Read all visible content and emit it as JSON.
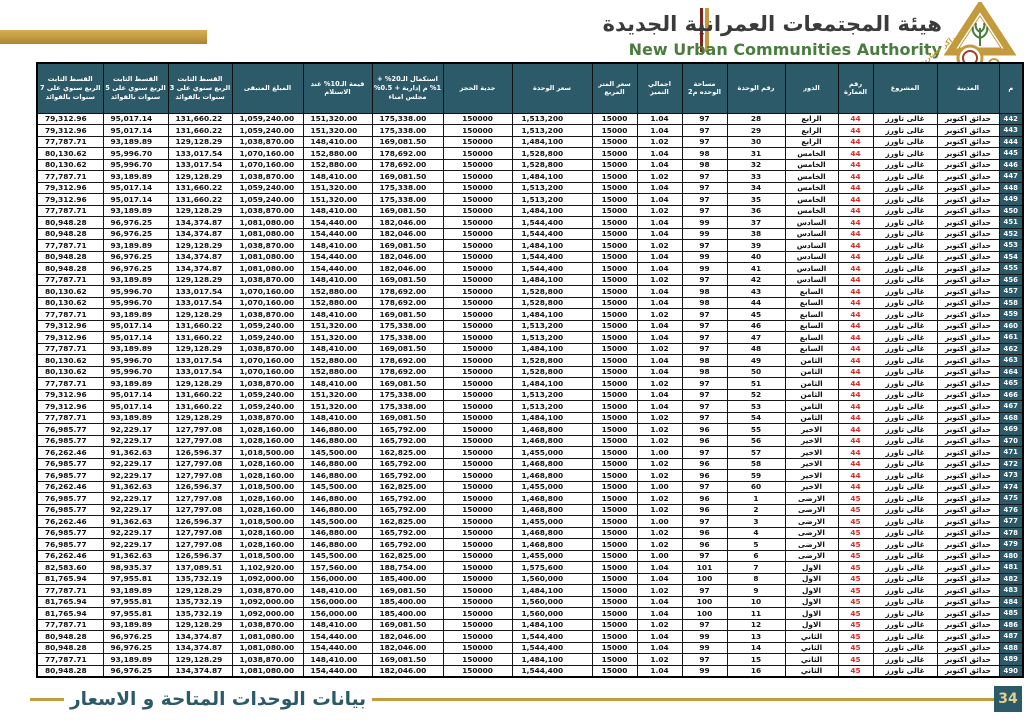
{
  "header": {
    "title_ar": "هيئة المجتمعات العمرانية الجديدة",
    "title_en": "New Urban Communities Authority",
    "logo_tagline": "مراكز حضارية جديدة"
  },
  "footer": {
    "caption": "بيانات الوحدات المتاحة و الاسعار",
    "page_number": "34"
  },
  "colors": {
    "header_bg": "#2d5a68",
    "accent_gold": "#c49b3c",
    "building_red": "#d92b2b",
    "english_green": "#4a7c3f",
    "strip_red": "#7d2320"
  },
  "table": {
    "columns": [
      {
        "key": "serial",
        "label": "م"
      },
      {
        "key": "city",
        "label": "المدينة"
      },
      {
        "key": "project",
        "label": "المشروع"
      },
      {
        "key": "building",
        "label": "رقم العمارة"
      },
      {
        "key": "floor",
        "label": "الدور"
      },
      {
        "key": "unit",
        "label": "رقم الوحدة"
      },
      {
        "key": "area",
        "label": "مساحة الوحده م2"
      },
      {
        "key": "premium",
        "label": "اجمالي التميز"
      },
      {
        "key": "meter_price",
        "label": "سعر المتر المربع"
      },
      {
        "key": "unit_price",
        "label": "سعر الوحدة"
      },
      {
        "key": "deposit",
        "label": "جدية الحجز"
      },
      {
        "key": "completion_20",
        "label": "استكمال الـ20% + 1% م إدارية + 0.5% مجلس امناء"
      },
      {
        "key": "value_10",
        "label": "قيمة الـ10% عند الاستلام"
      },
      {
        "key": "remaining",
        "label": "المبلغ المتبقى"
      },
      {
        "key": "installment_3y",
        "label": "القسط الثابت الربع سنوي على 3 سنوات بالفوائد"
      },
      {
        "key": "installment_5y",
        "label": "القسط الثابت الربع سنوي على 5 سنوات بالفوائد"
      },
      {
        "key": "installment_7y",
        "label": "القسط الثابت الربع سنوي على 7 سنوات بالفوائد"
      }
    ],
    "rows": [
      [
        "442",
        "حدائق اكتوبر",
        "غالى تاورز",
        "44",
        "الرابع",
        "28",
        "97",
        "1.04",
        "15000",
        "1,513,200",
        "150000",
        "175,338.00",
        "151,320.00",
        "1,059,240.00",
        "131,660.22",
        "95,017.14",
        "79,312.96"
      ],
      [
        "443",
        "حدائق اكتوبر",
        "غالى تاورز",
        "44",
        "الرابع",
        "29",
        "97",
        "1.04",
        "15000",
        "1,513,200",
        "150000",
        "175,338.00",
        "151,320.00",
        "1,059,240.00",
        "131,660.22",
        "95,017.14",
        "79,312.96"
      ],
      [
        "444",
        "حدائق اكتوبر",
        "غالى تاورز",
        "44",
        "الرابع",
        "30",
        "97",
        "1.02",
        "15000",
        "1,484,100",
        "150000",
        "169,081.50",
        "148,410.00",
        "1,038,870.00",
        "129,128.29",
        "93,189.89",
        "77,787.71"
      ],
      [
        "445",
        "حدائق اكتوبر",
        "غالى تاورز",
        "44",
        "الخامس",
        "31",
        "98",
        "1.04",
        "15000",
        "1,528,800",
        "150000",
        "178,692.00",
        "152,880.00",
        "1,070,160.00",
        "133,017.54",
        "95,996.70",
        "80,130.62"
      ],
      [
        "446",
        "حدائق اكتوبر",
        "غالى تاورز",
        "44",
        "الخامس",
        "32",
        "98",
        "1.04",
        "15000",
        "1,528,800",
        "150000",
        "178,692.00",
        "152,880.00",
        "1,070,160.00",
        "133,017.54",
        "95,996.70",
        "80,130.62"
      ],
      [
        "447",
        "حدائق اكتوبر",
        "غالى تاورز",
        "44",
        "الخامس",
        "33",
        "97",
        "1.02",
        "15000",
        "1,484,100",
        "150000",
        "169,081.50",
        "148,410.00",
        "1,038,870.00",
        "129,128.29",
        "93,189.89",
        "77,787.71"
      ],
      [
        "448",
        "حدائق اكتوبر",
        "غالى تاورز",
        "44",
        "الخامس",
        "34",
        "97",
        "1.04",
        "15000",
        "1,513,200",
        "150000",
        "175,338.00",
        "151,320.00",
        "1,059,240.00",
        "131,660.22",
        "95,017.14",
        "79,312.96"
      ],
      [
        "449",
        "حدائق اكتوبر",
        "غالى تاورز",
        "44",
        "الخامس",
        "35",
        "97",
        "1.04",
        "15000",
        "1,513,200",
        "150000",
        "175,338.00",
        "151,320.00",
        "1,059,240.00",
        "131,660.22",
        "95,017.14",
        "79,312.96"
      ],
      [
        "450",
        "حدائق اكتوبر",
        "غالى تاورز",
        "44",
        "الخامس",
        "36",
        "97",
        "1.02",
        "15000",
        "1,484,100",
        "150000",
        "169,081.50",
        "148,410.00",
        "1,038,870.00",
        "129,128.29",
        "93,189.89",
        "77,787.71"
      ],
      [
        "451",
        "حدائق اكتوبر",
        "غالى تاورز",
        "44",
        "السادس",
        "37",
        "99",
        "1.04",
        "15000",
        "1,544,400",
        "150000",
        "182,046.00",
        "154,440.00",
        "1,081,080.00",
        "134,374.87",
        "96,976.25",
        "80,948.28"
      ],
      [
        "452",
        "حدائق اكتوبر",
        "غالى تاورز",
        "44",
        "السادس",
        "38",
        "99",
        "1.04",
        "15000",
        "1,544,400",
        "150000",
        "182,046.00",
        "154,440.00",
        "1,081,080.00",
        "134,374.87",
        "96,976.25",
        "80,948.28"
      ],
      [
        "453",
        "حدائق اكتوبر",
        "غالى تاورز",
        "44",
        "السادس",
        "39",
        "97",
        "1.02",
        "15000",
        "1,484,100",
        "150000",
        "169,081.50",
        "148,410.00",
        "1,038,870.00",
        "129,128.29",
        "93,189.89",
        "77,787.71"
      ],
      [
        "454",
        "حدائق اكتوبر",
        "غالى تاورز",
        "44",
        "السادس",
        "40",
        "99",
        "1.04",
        "15000",
        "1,544,400",
        "150000",
        "182,046.00",
        "154,440.00",
        "1,081,080.00",
        "134,374.87",
        "96,976.25",
        "80,948.28"
      ],
      [
        "455",
        "حدائق اكتوبر",
        "غالى تاورز",
        "44",
        "السادس",
        "41",
        "99",
        "1.04",
        "15000",
        "1,544,400",
        "150000",
        "182,046.00",
        "154,440.00",
        "1,081,080.00",
        "134,374.87",
        "96,976.25",
        "80,948.28"
      ],
      [
        "456",
        "حدائق اكتوبر",
        "غالى تاورز",
        "44",
        "السادس",
        "42",
        "97",
        "1.02",
        "15000",
        "1,484,100",
        "150000",
        "169,081.50",
        "148,410.00",
        "1,038,870.00",
        "129,128.29",
        "93,189.89",
        "77,787.71"
      ],
      [
        "457",
        "حدائق اكتوبر",
        "غالى تاورز",
        "44",
        "السابع",
        "43",
        "98",
        "1.04",
        "15000",
        "1,528,800",
        "150000",
        "178,692.00",
        "152,880.00",
        "1,070,160.00",
        "133,017.54",
        "95,996.70",
        "80,130.62"
      ],
      [
        "458",
        "حدائق اكتوبر",
        "غالى تاورز",
        "44",
        "السابع",
        "44",
        "98",
        "1.04",
        "15000",
        "1,528,800",
        "150000",
        "178,692.00",
        "152,880.00",
        "1,070,160.00",
        "133,017.54",
        "95,996.70",
        "80,130.62"
      ],
      [
        "459",
        "حدائق اكتوبر",
        "غالى تاورز",
        "44",
        "السابع",
        "45",
        "97",
        "1.02",
        "15000",
        "1,484,100",
        "150000",
        "169,081.50",
        "148,410.00",
        "1,038,870.00",
        "129,128.29",
        "93,189.89",
        "77,787.71"
      ],
      [
        "460",
        "حدائق اكتوبر",
        "غالى تاورز",
        "44",
        "السابع",
        "46",
        "97",
        "1.04",
        "15000",
        "1,513,200",
        "150000",
        "175,338.00",
        "151,320.00",
        "1,059,240.00",
        "131,660.22",
        "95,017.14",
        "79,312.96"
      ],
      [
        "461",
        "حدائق اكتوبر",
        "غالى تاورز",
        "44",
        "السابع",
        "47",
        "97",
        "1.04",
        "15000",
        "1,513,200",
        "150000",
        "175,338.00",
        "151,320.00",
        "1,059,240.00",
        "131,660.22",
        "95,017.14",
        "79,312.96"
      ],
      [
        "462",
        "حدائق اكتوبر",
        "غالى تاورز",
        "44",
        "السابع",
        "48",
        "97",
        "1.02",
        "15000",
        "1,484,100",
        "150000",
        "169,081.50",
        "148,410.00",
        "1,038,870.00",
        "129,128.29",
        "93,189.89",
        "77,787.71"
      ],
      [
        "463",
        "حدائق اكتوبر",
        "غالى تاورز",
        "44",
        "الثامن",
        "49",
        "98",
        "1.04",
        "15000",
        "1,528,800",
        "150000",
        "178,692.00",
        "152,880.00",
        "1,070,160.00",
        "133,017.54",
        "95,996.70",
        "80,130.62"
      ],
      [
        "464",
        "حدائق اكتوبر",
        "غالى تاورز",
        "44",
        "الثامن",
        "50",
        "98",
        "1.04",
        "15000",
        "1,528,800",
        "150000",
        "178,692.00",
        "152,880.00",
        "1,070,160.00",
        "133,017.54",
        "95,996.70",
        "80,130.62"
      ],
      [
        "465",
        "حدائق اكتوبر",
        "غالى تاورز",
        "44",
        "الثامن",
        "51",
        "97",
        "1.02",
        "15000",
        "1,484,100",
        "150000",
        "169,081.50",
        "148,410.00",
        "1,038,870.00",
        "129,128.29",
        "93,189.89",
        "77,787.71"
      ],
      [
        "466",
        "حدائق اكتوبر",
        "غالى تاورز",
        "44",
        "الثامن",
        "52",
        "97",
        "1.04",
        "15000",
        "1,513,200",
        "150000",
        "175,338.00",
        "151,320.00",
        "1,059,240.00",
        "131,660.22",
        "95,017.14",
        "79,312.96"
      ],
      [
        "467",
        "حدائق اكتوبر",
        "غالى تاورز",
        "44",
        "الثامن",
        "53",
        "97",
        "1.04",
        "15000",
        "1,513,200",
        "150000",
        "175,338.00",
        "151,320.00",
        "1,059,240.00",
        "131,660.22",
        "95,017.14",
        "79,312.96"
      ],
      [
        "468",
        "حدائق اكتوبر",
        "غالى تاورز",
        "44",
        "الثامن",
        "54",
        "97",
        "1.02",
        "15000",
        "1,484,100",
        "150000",
        "169,081.50",
        "148,410.00",
        "1,038,870.00",
        "129,128.29",
        "93,189.89",
        "77,787.71"
      ],
      [
        "469",
        "حدائق اكتوبر",
        "غالى تاورز",
        "44",
        "الاخير",
        "55",
        "96",
        "1.02",
        "15000",
        "1,468,800",
        "150000",
        "165,792.00",
        "146,880.00",
        "1,028,160.00",
        "127,797.08",
        "92,229.17",
        "76,985.77"
      ],
      [
        "470",
        "حدائق اكتوبر",
        "غالى تاورز",
        "44",
        "الاخير",
        "56",
        "96",
        "1.02",
        "15000",
        "1,468,800",
        "150000",
        "165,792.00",
        "146,880.00",
        "1,028,160.00",
        "127,797.08",
        "92,229.17",
        "76,985.77"
      ],
      [
        "471",
        "حدائق اكتوبر",
        "غالى تاورز",
        "44",
        "الاخير",
        "57",
        "97",
        "1.00",
        "15000",
        "1,455,000",
        "150000",
        "162,825.00",
        "145,500.00",
        "1,018,500.00",
        "126,596.37",
        "91,362.63",
        "76,262.46"
      ],
      [
        "472",
        "حدائق اكتوبر",
        "غالى تاورز",
        "44",
        "الاخير",
        "58",
        "96",
        "1.02",
        "15000",
        "1,468,800",
        "150000",
        "165,792.00",
        "146,880.00",
        "1,028,160.00",
        "127,797.08",
        "92,229.17",
        "76,985.77"
      ],
      [
        "473",
        "حدائق اكتوبر",
        "غالى تاورز",
        "44",
        "الاخير",
        "59",
        "96",
        "1.02",
        "15000",
        "1,468,800",
        "150000",
        "165,792.00",
        "146,880.00",
        "1,028,160.00",
        "127,797.08",
        "92,229.17",
        "76,985.77"
      ],
      [
        "474",
        "حدائق اكتوبر",
        "غالى تاورز",
        "44",
        "الاخير",
        "60",
        "97",
        "1.00",
        "15000",
        "1,455,000",
        "150000",
        "162,825.00",
        "145,500.00",
        "1,018,500.00",
        "126,596.37",
        "91,362.63",
        "76,262.46"
      ],
      [
        "475",
        "حدائق اكتوبر",
        "غالى تاورز",
        "45",
        "الارضى",
        "1",
        "96",
        "1.02",
        "15000",
        "1,468,800",
        "150000",
        "165,792.00",
        "146,880.00",
        "1,028,160.00",
        "127,797.08",
        "92,229.17",
        "76,985.77"
      ],
      [
        "476",
        "حدائق اكتوبر",
        "غالى تاورز",
        "45",
        "الارضى",
        "2",
        "96",
        "1.02",
        "15000",
        "1,468,800",
        "150000",
        "165,792.00",
        "146,880.00",
        "1,028,160.00",
        "127,797.08",
        "92,229.17",
        "76,985.77"
      ],
      [
        "477",
        "حدائق اكتوبر",
        "غالى تاورز",
        "45",
        "الارضى",
        "3",
        "97",
        "1.00",
        "15000",
        "1,455,000",
        "150000",
        "162,825.00",
        "145,500.00",
        "1,018,500.00",
        "126,596.37",
        "91,362.63",
        "76,262.46"
      ],
      [
        "478",
        "حدائق اكتوبر",
        "غالى تاورز",
        "45",
        "الارضى",
        "4",
        "96",
        "1.02",
        "15000",
        "1,468,800",
        "150000",
        "165,792.00",
        "146,880.00",
        "1,028,160.00",
        "127,797.08",
        "92,229.17",
        "76,985.77"
      ],
      [
        "479",
        "حدائق اكتوبر",
        "غالى تاورز",
        "45",
        "الارضى",
        "5",
        "96",
        "1.02",
        "15000",
        "1,468,800",
        "150000",
        "165,792.00",
        "146,880.00",
        "1,028,160.00",
        "127,797.08",
        "92,229.17",
        "76,985.77"
      ],
      [
        "480",
        "حدائق اكتوبر",
        "غالى تاورز",
        "45",
        "الارضى",
        "6",
        "97",
        "1.00",
        "15000",
        "1,455,000",
        "150000",
        "162,825.00",
        "145,500.00",
        "1,018,500.00",
        "126,596.37",
        "91,362.63",
        "76,262.46"
      ],
      [
        "481",
        "حدائق اكتوبر",
        "غالى تاورز",
        "45",
        "الاول",
        "7",
        "101",
        "1.04",
        "15000",
        "1,575,600",
        "150000",
        "188,754.00",
        "157,560.00",
        "1,102,920.00",
        "137,089.51",
        "98,935.37",
        "82,583.60"
      ],
      [
        "482",
        "حدائق اكتوبر",
        "غالى تاورز",
        "45",
        "الاول",
        "8",
        "100",
        "1.04",
        "15000",
        "1,560,000",
        "150000",
        "185,400.00",
        "156,000.00",
        "1,092,000.00",
        "135,732.19",
        "97,955.81",
        "81,765.94"
      ],
      [
        "483",
        "حدائق اكتوبر",
        "غالى تاورز",
        "45",
        "الاول",
        "9",
        "97",
        "1.02",
        "15000",
        "1,484,100",
        "150000",
        "169,081.50",
        "148,410.00",
        "1,038,870.00",
        "129,128.29",
        "93,189.89",
        "77,787.71"
      ],
      [
        "484",
        "حدائق اكتوبر",
        "غالى تاورز",
        "45",
        "الاول",
        "10",
        "100",
        "1.04",
        "15000",
        "1,560,000",
        "150000",
        "185,400.00",
        "156,000.00",
        "1,092,000.00",
        "135,732.19",
        "97,955.81",
        "81,765.94"
      ],
      [
        "485",
        "حدائق اكتوبر",
        "غالى تاورز",
        "45",
        "الاول",
        "11",
        "100",
        "1.04",
        "15000",
        "1,560,000",
        "150000",
        "185,400.00",
        "156,000.00",
        "1,092,000.00",
        "135,732.19",
        "97,955.81",
        "81,765.94"
      ],
      [
        "486",
        "حدائق اكتوبر",
        "غالى تاورز",
        "45",
        "الاول",
        "12",
        "97",
        "1.02",
        "15000",
        "1,484,100",
        "150000",
        "169,081.50",
        "148,410.00",
        "1,038,870.00",
        "129,128.29",
        "93,189.89",
        "77,787.71"
      ],
      [
        "487",
        "حدائق اكتوبر",
        "غالى تاورز",
        "45",
        "الثاني",
        "13",
        "99",
        "1.04",
        "15000",
        "1,544,400",
        "150000",
        "182,046.00",
        "154,440.00",
        "1,081,080.00",
        "134,374.87",
        "96,976.25",
        "80,948.28"
      ],
      [
        "488",
        "حدائق اكتوبر",
        "غالى تاورز",
        "45",
        "الثاني",
        "14",
        "99",
        "1.04",
        "15000",
        "1,544,400",
        "150000",
        "182,046.00",
        "154,440.00",
        "1,081,080.00",
        "134,374.87",
        "96,976.25",
        "80,948.28"
      ],
      [
        "489",
        "حدائق اكتوبر",
        "غالى تاورز",
        "45",
        "الثاني",
        "15",
        "97",
        "1.02",
        "15000",
        "1,484,100",
        "150000",
        "169,081.50",
        "148,410.00",
        "1,038,870.00",
        "129,128.29",
        "93,189.89",
        "77,787.71"
      ],
      [
        "490",
        "حدائق اكتوبر",
        "غالى تاورز",
        "45",
        "الثاني",
        "16",
        "99",
        "1.04",
        "15000",
        "1,544,400",
        "150000",
        "182,046.00",
        "154,440.00",
        "1,081,080.00",
        "134,374.87",
        "96,976.25",
        "80,948.28"
      ]
    ]
  }
}
